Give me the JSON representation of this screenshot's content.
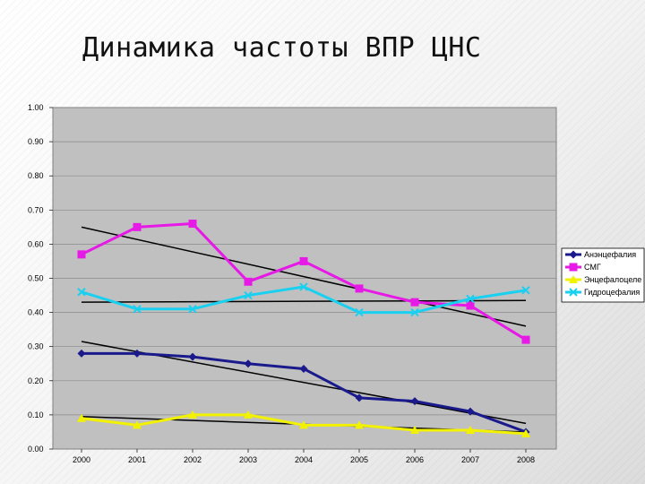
{
  "slide": {
    "title": "Динамика частоты ВПР ЦНС"
  },
  "chart_data": {
    "type": "line",
    "x": [
      "2000",
      "2001",
      "2002",
      "2003",
      "2004",
      "2005",
      "2006",
      "2007",
      "2008"
    ],
    "ylim": [
      0,
      1
    ],
    "yticks": [
      "0.00",
      "0.10",
      "0.20",
      "0.30",
      "0.40",
      "0.50",
      "0.60",
      "0.70",
      "0.80",
      "0.90",
      "1.00"
    ],
    "grid": true,
    "legend_position": "right",
    "series": [
      {
        "name": "Анэнцефалия",
        "color": "#1a1a8c",
        "marker": "diamond",
        "values": [
          0.28,
          0.28,
          0.27,
          0.25,
          0.235,
          0.15,
          0.14,
          0.11,
          0.05
        ],
        "trend": [
          0.315,
          0.075
        ]
      },
      {
        "name": "СМГ",
        "color": "#e619e6",
        "marker": "square",
        "values": [
          0.57,
          0.65,
          0.66,
          0.49,
          0.55,
          0.47,
          0.43,
          0.42,
          0.32
        ],
        "trend": [
          0.65,
          0.36
        ]
      },
      {
        "name": "Энцефалоцеле",
        "color": "#f2f200",
        "marker": "triangle",
        "values": [
          0.09,
          0.07,
          0.1,
          0.1,
          0.07,
          0.07,
          0.055,
          0.055,
          0.045
        ],
        "trend": [
          0.095,
          0.05
        ]
      },
      {
        "name": "Гидроцефалия",
        "color": "#1ad0f0",
        "marker": "x",
        "values": [
          0.46,
          0.41,
          0.41,
          0.45,
          0.475,
          0.4,
          0.4,
          0.44,
          0.465
        ],
        "trend": [
          0.43,
          0.435
        ]
      }
    ]
  }
}
